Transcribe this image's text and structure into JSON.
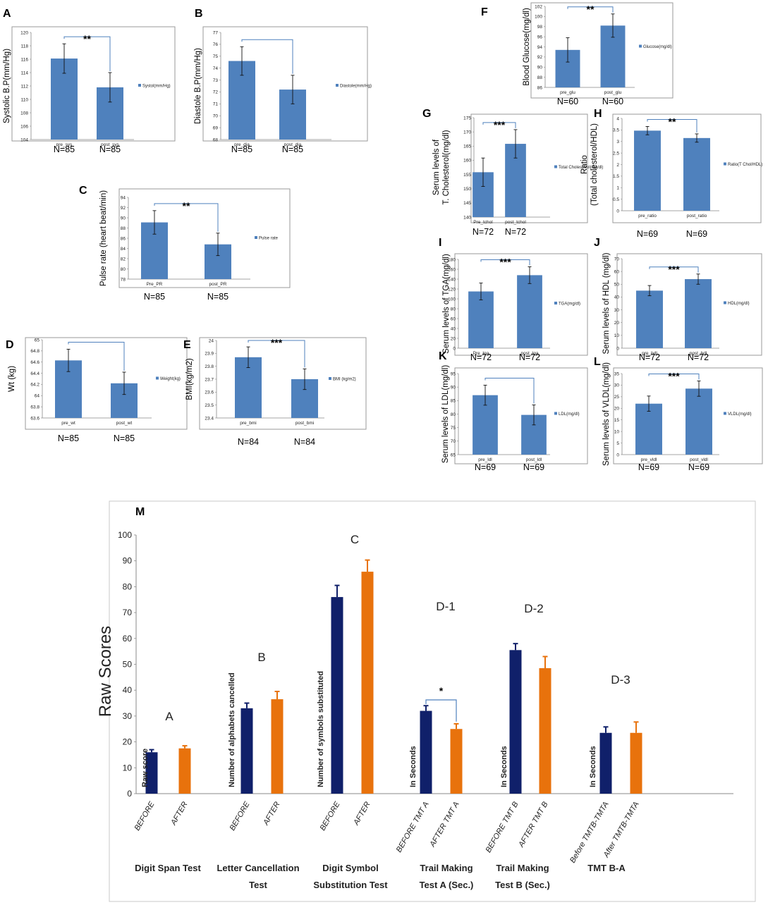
{
  "chart_data": [
    {
      "id": "A",
      "type": "bar",
      "ylabel": "Systolic B.P(mm/Hg)",
      "categories": [
        "pre_sys",
        "post_sys"
      ],
      "values": [
        116.1,
        111.8
      ],
      "errors": [
        2.2,
        2.2
      ],
      "ylim": [
        104,
        120
      ],
      "yticks": [
        104,
        106,
        108,
        110,
        112,
        114,
        116,
        118,
        120
      ],
      "legend": "Systol(mm/Hg)",
      "n": [
        "N=85",
        "N=85"
      ],
      "sig": "**"
    },
    {
      "id": "B",
      "type": "bar",
      "ylabel": "Diastole B.P(mm/Hg)",
      "categories": [
        "pre_dia",
        "post_dia"
      ],
      "values": [
        74.6,
        72.2
      ],
      "errors": [
        1.2,
        1.2
      ],
      "ylim": [
        68,
        77
      ],
      "yticks": [
        68,
        69,
        70,
        71,
        72,
        73,
        74,
        75,
        76,
        77
      ],
      "legend": "Diastole(mm/Hg)",
      "n": [
        "N=85",
        "N=85"
      ],
      "sig": ""
    },
    {
      "id": "C",
      "type": "bar",
      "ylabel": "Pulse rate (heart beat/min)",
      "categories": [
        "Pre_PR",
        "post_PR"
      ],
      "values": [
        89.1,
        84.8
      ],
      "errors": [
        2.3,
        2.2
      ],
      "ylim": [
        78,
        94
      ],
      "yticks": [
        78,
        80,
        82,
        84,
        86,
        88,
        90,
        92,
        94
      ],
      "legend": "Pulse rate",
      "n": [
        "N=85",
        "N=85"
      ],
      "sig": "**"
    },
    {
      "id": "D",
      "type": "bar",
      "ylabel": "Wt (kg)",
      "categories": [
        "pre_wt",
        "post_wt"
      ],
      "values": [
        64.63,
        64.22
      ],
      "errors": [
        0.2,
        0.2
      ],
      "ylim": [
        63.6,
        65
      ],
      "yticks": [
        63.6,
        63.8,
        64,
        64.2,
        64.4,
        64.6,
        64.8,
        65
      ],
      "legend": "Weight(kg)",
      "n": [
        "N=85",
        "N=85"
      ],
      "sig": ""
    },
    {
      "id": "E",
      "type": "bar",
      "ylabel": "BMI(kg/m2)",
      "categories": [
        "pre_bmi",
        "post_bmi"
      ],
      "values": [
        23.87,
        23.7
      ],
      "errors": [
        0.08,
        0.08
      ],
      "ylim": [
        23.4,
        24
      ],
      "yticks": [
        23.4,
        23.5,
        23.6,
        23.7,
        23.8,
        23.9,
        24
      ],
      "legend": "BMI (kg/m2)",
      "n": [
        "N=84",
        "N=84"
      ],
      "sig": "***"
    },
    {
      "id": "F",
      "type": "bar",
      "ylabel": "Blood Glucose(mg/dl)",
      "categories": [
        "pre_glu",
        "post_glu"
      ],
      "values": [
        93.4,
        98.2
      ],
      "errors": [
        2.4,
        2.3
      ],
      "ylim": [
        86,
        102
      ],
      "yticks": [
        86,
        88,
        90,
        92,
        94,
        96,
        98,
        100,
        102
      ],
      "legend": "Glucose(mg/dl)",
      "n": [
        "N=60",
        "N=60"
      ],
      "sig": "**"
    },
    {
      "id": "G",
      "type": "bar",
      "ylabel": "Serum levels of",
      "ylabel2": "T. Cholesterol(mg/dl)",
      "categories": [
        "Pre_tchol",
        "post_tchol"
      ],
      "values": [
        155.8,
        165.8
      ],
      "errors": [
        5,
        5
      ],
      "ylim": [
        140,
        175
      ],
      "yticks": [
        140,
        145,
        150,
        155,
        160,
        165,
        170,
        175
      ],
      "legend": "Total Cholesterol(mg/dl)",
      "n": [
        "N=72",
        "N=72"
      ],
      "sig": "***"
    },
    {
      "id": "H",
      "type": "bar",
      "ylabel": "Ratio",
      "ylabel2": "(Total cholesterol/HDL)",
      "categories": [
        "pre_ratio",
        "post_ratio"
      ],
      "values": [
        3.47,
        3.15
      ],
      "errors": [
        0.18,
        0.18
      ],
      "ylim": [
        0,
        4
      ],
      "yticks": [
        0,
        0.5,
        1,
        1.5,
        2,
        2.5,
        3,
        3.5,
        4
      ],
      "legend": "Ratio(T Chol/HDL)",
      "n": [
        "N=69",
        "N=69"
      ],
      "sig": "**"
    },
    {
      "id": "I",
      "type": "bar",
      "ylabel": "Serum levels of TGA(mg/dl)",
      "categories": [
        "Pre_tga",
        "post_tga"
      ],
      "values": [
        115,
        148
      ],
      "errors": [
        17,
        17
      ],
      "ylim": [
        0,
        180
      ],
      "yticks": [
        0,
        20,
        40,
        60,
        80,
        100,
        120,
        140,
        160,
        180
      ],
      "legend": "TGA(mg/dl)",
      "n": [
        "N=72",
        "N=72"
      ],
      "sig": "***"
    },
    {
      "id": "J",
      "type": "bar",
      "ylabel": "Serum levels of HDL (mg/dl)",
      "categories": [
        "pre_hdl",
        "post_hdl"
      ],
      "values": [
        45,
        54
      ],
      "errors": [
        4,
        4
      ],
      "ylim": [
        0,
        70
      ],
      "yticks": [
        0,
        10,
        20,
        30,
        40,
        50,
        60,
        70
      ],
      "legend": "HDL(mg/dl)",
      "n": [
        "N=72",
        "N=72"
      ],
      "sig": "***"
    },
    {
      "id": "K",
      "type": "bar",
      "ylabel": "Serum levels of LDL(mg/dl)",
      "categories": [
        "pre_ldl",
        "post_ldl"
      ],
      "values": [
        87,
        79.7
      ],
      "errors": [
        3.7,
        3.7
      ],
      "ylim": [
        65,
        95
      ],
      "yticks": [
        65,
        70,
        75,
        80,
        85,
        90,
        95
      ],
      "legend": "LDL(mg/dl)",
      "n": [
        "N=69",
        "N=69"
      ],
      "sig": ""
    },
    {
      "id": "L",
      "type": "bar",
      "ylabel": "Serum levels of VLDL(mg/dl)",
      "categories": [
        "pre_vldl",
        "post_vldl"
      ],
      "values": [
        22,
        28.5
      ],
      "errors": [
        3.3,
        3.3
      ],
      "ylim": [
        0,
        35
      ],
      "yticks": [
        0,
        5,
        10,
        15,
        20,
        25,
        30,
        35
      ],
      "legend": "VLDL(mg/dl)",
      "n": [
        "N=69",
        "N=69"
      ],
      "sig": "***"
    },
    {
      "id": "M",
      "type": "bar",
      "ylabel": "Raw Scores",
      "ylim": [
        0,
        100
      ],
      "yticks": [
        0,
        10,
        20,
        30,
        40,
        50,
        60,
        70,
        80,
        90,
        100
      ],
      "colors": {
        "before": "#10206a",
        "after": "#e8720c"
      },
      "groups": [
        {
          "letter": "A",
          "title": [
            "Digit Span Test"
          ],
          "vlabel": "Raw score",
          "categories": [
            "BEFORE",
            "AFTER"
          ],
          "values": [
            16,
            17.5
          ],
          "errors": [
            1,
            1
          ],
          "sig": ""
        },
        {
          "letter": "B",
          "title": [
            "Letter Cancellation",
            "Test"
          ],
          "vlabel": "Number of alphabets cancelled",
          "categories": [
            "BEFORE",
            "AFTER"
          ],
          "values": [
            33,
            36.5
          ],
          "errors": [
            2,
            3
          ],
          "sig": ""
        },
        {
          "letter": "C",
          "title": [
            "Digit Symbol",
            "Substitution Test"
          ],
          "vlabel": "Number of symbols substituted",
          "categories": [
            "BEFORE",
            "AFTER"
          ],
          "values": [
            76,
            85.8
          ],
          "errors": [
            4.5,
            4.5
          ],
          "sig": ""
        },
        {
          "letter": "D-1",
          "title": [
            "Trail Making",
            "Test A (Sec.)"
          ],
          "vlabel": "In Seconds",
          "categories": [
            "BEFORE TMT A",
            "AFTER TMT A"
          ],
          "values": [
            32,
            25
          ],
          "errors": [
            2,
            2
          ],
          "sig": "*"
        },
        {
          "letter": "D-2",
          "title": [
            "Trail Making",
            "Test B (Sec.)"
          ],
          "vlabel": "In Seconds",
          "categories": [
            "BEFORE TMT B",
            "AFTER TMT B"
          ],
          "values": [
            55.5,
            48.5
          ],
          "errors": [
            2.5,
            4.5
          ],
          "sig": ""
        },
        {
          "letter": "D-3",
          "title": [
            "TMT B-A"
          ],
          "vlabel": "In Seconds",
          "categories": [
            "Before TMTB-TMTA",
            "After TMTB-TMTA"
          ],
          "values": [
            23.5,
            23.5
          ],
          "errors": [
            2.3,
            4.2
          ],
          "sig": ""
        }
      ]
    }
  ]
}
